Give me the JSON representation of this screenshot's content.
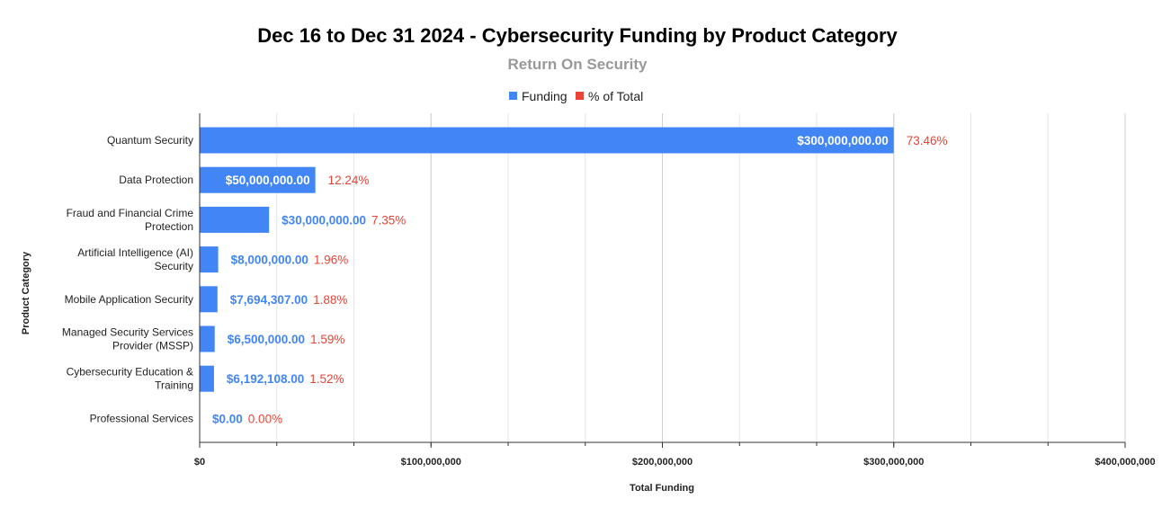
{
  "chart_data": {
    "type": "bar",
    "orientation": "horizontal",
    "title": "Dec 16 to Dec 31 2024 - Cybersecurity Funding by Product Category",
    "subtitle": "Return On Security",
    "xlabel": "Total Funding",
    "ylabel": "Product Category",
    "xlim": [
      0,
      400000000
    ],
    "x_ticks": [
      0,
      100000000,
      200000000,
      300000000,
      400000000
    ],
    "x_tick_labels": [
      "$0",
      "$100,000,000",
      "$200,000,000",
      "$300,000,000",
      "$400,000,000"
    ],
    "legend_position": "top-center",
    "grid": true,
    "legend": [
      {
        "name": "Funding",
        "color": "#4285f4"
      },
      {
        "name": "% of Total",
        "color": "#ea4335"
      }
    ],
    "categories": [
      [
        "Quantum Security"
      ],
      [
        "Data Protection"
      ],
      [
        "Fraud and Financial Crime",
        "Protection"
      ],
      [
        "Artificial Intelligence (AI)",
        "Security"
      ],
      [
        "Mobile Application Security"
      ],
      [
        "Managed Security Services",
        "Provider (MSSP)"
      ],
      [
        "Cybersecurity Education &",
        "Training"
      ],
      [
        "Professional Services"
      ]
    ],
    "values": [
      300000000,
      50000000,
      30000000,
      8000000,
      7694307,
      6500000,
      6192108,
      0
    ],
    "value_labels": [
      "$300,000,000.00",
      "$50,000,000.00",
      "$30,000,000.00",
      "$8,000,000.00",
      "$7,694,307.00",
      "$6,500,000.00",
      "$6,192,108.00",
      "$0.00"
    ],
    "percent_labels": [
      "73.46%",
      "12.24%",
      "7.35%",
      "1.96%",
      "1.88%",
      "1.59%",
      "1.52%",
      "0.00%"
    ],
    "colors": {
      "bar": "#4285f4",
      "value_label_outside": "#4285f4",
      "value_label_inside": "#ffffff",
      "percent": "#ea4335",
      "grid": "#e6e6e6",
      "axis": "#333333"
    }
  }
}
